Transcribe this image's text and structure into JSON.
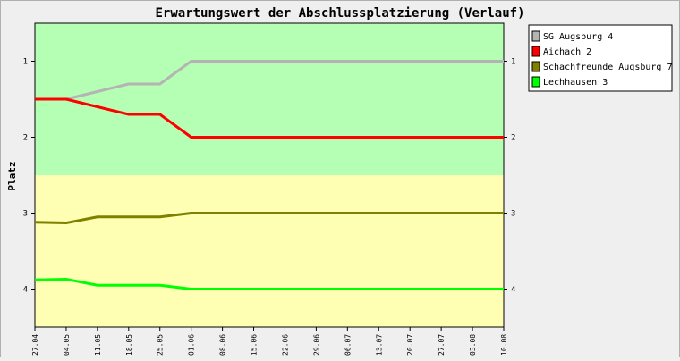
{
  "chart_data": {
    "type": "line",
    "title": "Erwartungswert der Abschlussplatzierung (Verlauf)",
    "ylabel": "Platz",
    "xlabel": "",
    "x": [
      "27.04",
      "04.05",
      "11.05",
      "18.05",
      "25.05",
      "01.06",
      "08.06",
      "15.06",
      "22.06",
      "29.06",
      "06.07",
      "13.07",
      "20.07",
      "27.07",
      "03.08",
      "10.08"
    ],
    "y_ticks": [
      1,
      2,
      3,
      4
    ],
    "ylim": [
      4.5,
      0.5
    ],
    "y_inverted": true,
    "bands": [
      {
        "from": 0.5,
        "to": 2.5,
        "color": "#b4ffb4"
      },
      {
        "from": 2.5,
        "to": 4.5,
        "color": "#ffffb4"
      }
    ],
    "series": [
      {
        "name": "SG Augsburg 4",
        "color": "#b4b4b4",
        "values": [
          1.5,
          1.5,
          1.4,
          1.3,
          1.3,
          1.0,
          1.0,
          1.0,
          1.0,
          1.0,
          1.0,
          1.0,
          1.0,
          1.0,
          1.0,
          1.0
        ]
      },
      {
        "name": "Aichach 2",
        "color": "#ff0000",
        "values": [
          1.5,
          1.5,
          1.6,
          1.7,
          1.7,
          2.0,
          2.0,
          2.0,
          2.0,
          2.0,
          2.0,
          2.0,
          2.0,
          2.0,
          2.0,
          2.0
        ]
      },
      {
        "name": "Schachfreunde Augsburg 7",
        "color": "#808000",
        "values": [
          3.12,
          3.13,
          3.05,
          3.05,
          3.05,
          3.0,
          3.0,
          3.0,
          3.0,
          3.0,
          3.0,
          3.0,
          3.0,
          3.0,
          3.0,
          3.0
        ]
      },
      {
        "name": "Lechhausen 3",
        "color": "#00ff00",
        "values": [
          3.88,
          3.87,
          3.95,
          3.95,
          3.95,
          4.0,
          4.0,
          4.0,
          4.0,
          4.0,
          4.0,
          4.0,
          4.0,
          4.0,
          4.0,
          4.0
        ]
      }
    ],
    "grid": false,
    "legend": "top-right"
  }
}
